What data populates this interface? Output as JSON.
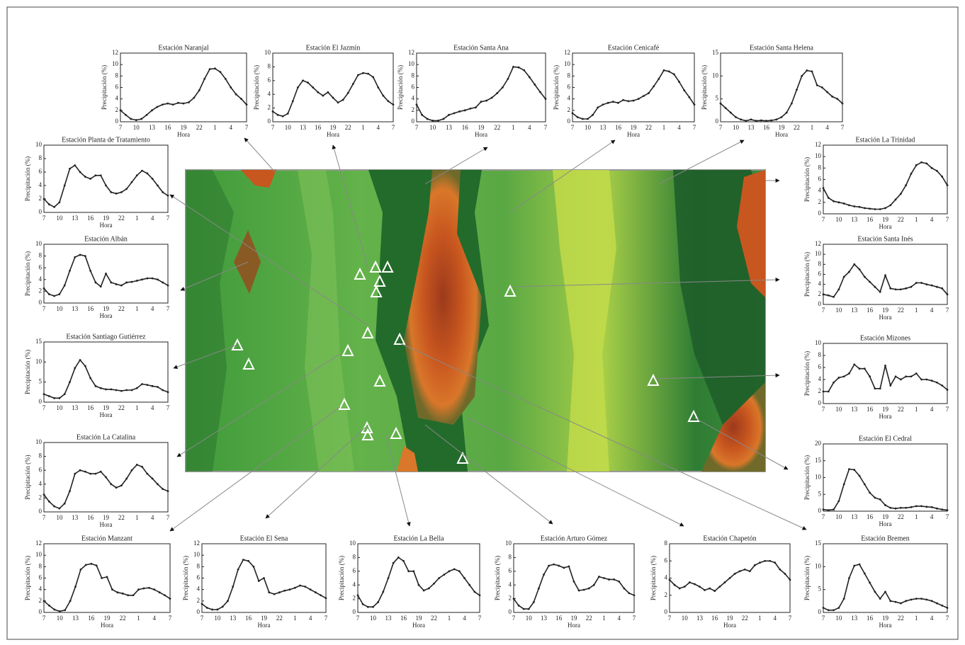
{
  "chart_data": [
    {
      "type": "line",
      "title": "Estación  Naranjal",
      "y_label": "Precipitación (%)",
      "x_label": "Hora",
      "color": "#222222",
      "categories": [
        "7",
        null,
        null,
        "10",
        null,
        null,
        "13",
        null,
        null,
        "16",
        null,
        null,
        "19",
        null,
        null,
        "22",
        null,
        null,
        "1",
        null,
        null,
        "4",
        null,
        null,
        "7"
      ],
      "values": [
        2,
        1.2,
        0.5,
        0.3,
        0.5,
        1.2,
        2,
        2.6,
        3,
        3.2,
        3,
        3.3,
        3.2,
        3.4,
        4.2,
        5.5,
        7.5,
        9.2,
        9.3,
        8.7,
        7.5,
        6,
        4.8,
        4,
        3
      ],
      "ylim": [
        0,
        12
      ],
      "yticks": [
        0,
        2,
        4,
        6,
        8,
        10,
        12
      ]
    },
    {
      "type": "line",
      "title": "Estación  El Jazmín",
      "y_label": "Precipitación (%)",
      "x_label": "Hora",
      "color": "#222222",
      "categories": [
        "7",
        null,
        null,
        "10",
        null,
        null,
        "13",
        null,
        null,
        "16",
        null,
        null,
        "19",
        null,
        null,
        "22",
        null,
        null,
        "1",
        null,
        null,
        "4",
        null,
        null,
        "7"
      ],
      "values": [
        1.5,
        1,
        0.8,
        1.2,
        3,
        5,
        6,
        5.7,
        5,
        4.3,
        3.8,
        4.3,
        3.5,
        2.8,
        3.2,
        4.2,
        5.5,
        6.8,
        7.1,
        7,
        6.5,
        5,
        3.8,
        3,
        2.5
      ],
      "ylim": [
        0,
        10
      ],
      "yticks": [
        0,
        2,
        4,
        6,
        8,
        10
      ]
    },
    {
      "type": "line",
      "title": "Estación  Santa Ana",
      "y_label": "Precipitación (%)",
      "x_label": "Hora",
      "color": "#222222",
      "categories": [
        "7",
        null,
        null,
        "10",
        null,
        null,
        "13",
        null,
        null,
        "16",
        null,
        null,
        "19",
        null,
        null,
        "22",
        null,
        null,
        "1",
        null,
        null,
        "4",
        null,
        null,
        "7"
      ],
      "values": [
        3,
        1.2,
        0.5,
        0.2,
        0.2,
        0.5,
        1.2,
        1.5,
        1.8,
        2,
        2.3,
        2.5,
        3.5,
        3.7,
        4.2,
        5,
        6,
        7.5,
        9.6,
        9.5,
        9,
        7.8,
        6.5,
        5.2,
        4
      ],
      "ylim": [
        0,
        12
      ],
      "yticks": [
        0,
        2,
        4,
        6,
        8,
        10,
        12
      ]
    },
    {
      "type": "line",
      "title": "Estación  Cenicafé",
      "y_label": "Precipitación (%)",
      "x_label": "Hora",
      "color": "#222222",
      "categories": [
        "7",
        null,
        null,
        "10",
        null,
        null,
        "13",
        null,
        null,
        "16",
        null,
        null,
        "19",
        null,
        null,
        "22",
        null,
        null,
        "1",
        null,
        null,
        "4",
        null,
        null,
        "7"
      ],
      "values": [
        1.5,
        0.8,
        0.5,
        0.5,
        1.2,
        2.5,
        3,
        3.3,
        3.5,
        3.3,
        3.8,
        3.6,
        3.7,
        4,
        4.5,
        5,
        6.2,
        7.5,
        9,
        8.8,
        8.3,
        7,
        5.5,
        4.3,
        3
      ],
      "ylim": [
        0,
        12
      ],
      "yticks": [
        0,
        2,
        4,
        6,
        8,
        10,
        12
      ]
    },
    {
      "type": "line",
      "title": "Estación  Santa Helena",
      "y_label": "Precipitación (%)",
      "x_label": "Hora",
      "color": "#222222",
      "categories": [
        "7",
        null,
        null,
        "10",
        null,
        null,
        "13",
        null,
        null,
        "16",
        null,
        null,
        "19",
        null,
        null,
        "22",
        null,
        null,
        "1",
        null,
        null,
        "4",
        null,
        null,
        "7"
      ],
      "values": [
        4,
        3,
        2,
        1,
        0.5,
        0.2,
        0.5,
        0.2,
        0.3,
        0.2,
        0.3,
        0.5,
        1,
        2,
        4,
        7,
        10,
        11.2,
        11,
        8,
        7.5,
        6.5,
        5.5,
        5,
        4
      ],
      "ylim": [
        0,
        15
      ],
      "yticks": [
        0,
        5,
        10,
        15
      ]
    },
    {
      "type": "line",
      "title": "Estación  Planta de Tratamiento",
      "y_label": "Precipitación (%)",
      "x_label": "Hora",
      "color": "#222222",
      "categories": [
        "7",
        null,
        null,
        "10",
        null,
        null,
        "13",
        null,
        null,
        "16",
        null,
        null,
        "19",
        null,
        null,
        "22",
        null,
        null,
        "1",
        null,
        null,
        "4",
        null,
        null,
        "7"
      ],
      "values": [
        2,
        1.2,
        0.8,
        1.5,
        4,
        6.5,
        7,
        6,
        5.3,
        5,
        5.5,
        5.5,
        4,
        3,
        2.8,
        3,
        3.5,
        4.5,
        5.5,
        6.2,
        5.8,
        5,
        4,
        3,
        2.5
      ],
      "ylim": [
        0,
        10
      ],
      "yticks": [
        0,
        2,
        4,
        6,
        8,
        10
      ]
    },
    {
      "type": "line",
      "title": "Estación  Albán",
      "y_label": "Precipitación (%)",
      "x_label": "Hora",
      "color": "#222222",
      "categories": [
        "7",
        null,
        null,
        "10",
        null,
        null,
        "13",
        null,
        null,
        "16",
        null,
        null,
        "19",
        null,
        null,
        "22",
        null,
        null,
        "1",
        null,
        null,
        "4",
        null,
        null,
        "7"
      ],
      "values": [
        2.5,
        1.5,
        1.2,
        1.5,
        3,
        5.5,
        7.8,
        8.2,
        8,
        5.5,
        3.5,
        2.8,
        5,
        3.5,
        3.2,
        3,
        3.5,
        3.6,
        3.8,
        4,
        4.2,
        4.2,
        4,
        3.5,
        3
      ],
      "ylim": [
        0,
        10
      ],
      "yticks": [
        0,
        2,
        4,
        6,
        8,
        10
      ]
    },
    {
      "type": "line",
      "title": "Estación  Santiago Gutiérrez",
      "y_label": "Precipitación (%)",
      "x_label": "Hora",
      "color": "#222222",
      "categories": [
        "7",
        null,
        null,
        "10",
        null,
        null,
        "13",
        null,
        null,
        "16",
        null,
        null,
        "19",
        null,
        null,
        "22",
        null,
        null,
        "1",
        null,
        null,
        "4",
        null,
        null,
        "7"
      ],
      "values": [
        2,
        1.5,
        1,
        1,
        2,
        5,
        8.5,
        10.5,
        9,
        6,
        4,
        3.5,
        3.2,
        3.2,
        3,
        2.8,
        3,
        3,
        3.5,
        4.5,
        4.3,
        4,
        3.8,
        3,
        2.5
      ],
      "ylim": [
        0,
        15
      ],
      "yticks": [
        0,
        5,
        10,
        15
      ]
    },
    {
      "type": "line",
      "title": "Estación  La Catalina",
      "y_label": "Precipitación (%)",
      "x_label": "Hora",
      "color": "#222222",
      "categories": [
        "7",
        null,
        null,
        "10",
        null,
        null,
        "13",
        null,
        null,
        "16",
        null,
        null,
        "19",
        null,
        null,
        "22",
        null,
        null,
        "1",
        null,
        null,
        "4",
        null,
        null,
        "7"
      ],
      "values": [
        2.5,
        1.5,
        0.8,
        0.5,
        1.2,
        3,
        5.5,
        6,
        5.8,
        5.5,
        5.5,
        5.8,
        5,
        4,
        3.5,
        3.8,
        4.8,
        6,
        6.8,
        6.5,
        5.5,
        4.8,
        4,
        3.3,
        3
      ],
      "ylim": [
        0,
        10
      ],
      "yticks": [
        0,
        2,
        4,
        6,
        8,
        10
      ]
    },
    {
      "type": "line",
      "title": "Estación  Manzant",
      "y_label": "Precipitación (%)",
      "x_label": "Hora",
      "color": "#222222",
      "categories": [
        "7",
        null,
        null,
        "10",
        null,
        null,
        "13",
        null,
        null,
        "16",
        null,
        null,
        "19",
        null,
        null,
        "22",
        null,
        null,
        "1",
        null,
        null,
        "4",
        null,
        null,
        "7"
      ],
      "values": [
        2,
        1.2,
        0.5,
        0.2,
        0.4,
        2,
        4.5,
        7.5,
        8.3,
        8.5,
        8.2,
        6,
        6.2,
        4,
        3.5,
        3.3,
        3,
        3,
        4,
        4.2,
        4.3,
        4,
        3.5,
        3,
        2.4
      ],
      "ylim": [
        0,
        12
      ],
      "yticks": [
        0,
        2,
        4,
        6,
        8,
        10,
        12
      ]
    },
    {
      "type": "line",
      "title": "Estación  El Sena",
      "y_label": "Precipitación (%)",
      "x_label": "Hora",
      "color": "#222222",
      "categories": [
        "7",
        null,
        null,
        "10",
        null,
        null,
        "13",
        null,
        null,
        "16",
        null,
        null,
        "19",
        null,
        null,
        "22",
        null,
        null,
        "1",
        null,
        null,
        "4",
        null,
        null,
        "7"
      ],
      "values": [
        1.5,
        0.8,
        0.5,
        0.5,
        1,
        2,
        4.5,
        7.5,
        9.2,
        9,
        8,
        5.5,
        6,
        3.5,
        3.2,
        3.5,
        3.8,
        4,
        4.3,
        4.7,
        4.5,
        4,
        3.5,
        3,
        2.5
      ],
      "ylim": [
        0,
        12
      ],
      "yticks": [
        0,
        2,
        4,
        6,
        8,
        10,
        12
      ]
    },
    {
      "type": "line",
      "title": "Estación  La Bella",
      "y_label": "Precipitación (%)",
      "x_label": "Hora",
      "color": "#222222",
      "categories": [
        "7",
        null,
        null,
        "10",
        null,
        null,
        "13",
        null,
        null,
        "16",
        null,
        null,
        "19",
        null,
        null,
        "22",
        null,
        null,
        "1",
        null,
        null,
        "4",
        null,
        null,
        "7"
      ],
      "values": [
        2.5,
        1.2,
        0.8,
        0.8,
        1.5,
        3,
        5,
        7.2,
        8,
        7.5,
        6,
        6,
        4,
        3.2,
        3.5,
        4.2,
        5,
        5.5,
        6,
        6.3,
        6,
        5,
        4,
        3,
        2.5
      ],
      "ylim": [
        0,
        10
      ],
      "yticks": [
        0,
        2,
        4,
        6,
        8,
        10
      ]
    },
    {
      "type": "line",
      "title": "Estación  Arturo Gómez",
      "y_label": "Precipitación (%)",
      "x_label": "Hora",
      "color": "#222222",
      "categories": [
        "7",
        null,
        null,
        "10",
        null,
        null,
        "13",
        null,
        null,
        "16",
        null,
        null,
        "19",
        null,
        null,
        "22",
        null,
        null,
        "1",
        null,
        null,
        "4",
        null,
        null,
        "7"
      ],
      "values": [
        2,
        1,
        0.5,
        0.5,
        1.5,
        3.5,
        5.5,
        6.8,
        7,
        6.8,
        6.5,
        6.7,
        4.5,
        3.2,
        3.3,
        3.5,
        4,
        5.2,
        5,
        4.8,
        4.8,
        4.5,
        3.5,
        2.8,
        2.5
      ],
      "ylim": [
        0,
        10
      ],
      "yticks": [
        0,
        2,
        4,
        6,
        8,
        10
      ]
    },
    {
      "type": "line",
      "title": "Estación  Chapetón",
      "y_label": "Precipitación (%)",
      "x_label": "Hora",
      "color": "#222222",
      "categories": [
        "7",
        null,
        null,
        "10",
        null,
        null,
        "13",
        null,
        null,
        "16",
        null,
        null,
        "19",
        null,
        null,
        "22",
        null,
        null,
        "1",
        null,
        null,
        "4",
        null,
        null,
        "7"
      ],
      "values": [
        3.8,
        3.2,
        2.8,
        3,
        3.5,
        3.3,
        3,
        2.6,
        2.8,
        2.5,
        3,
        3.5,
        4,
        4.5,
        4.8,
        5,
        4.8,
        5.5,
        5.8,
        6,
        6,
        5.8,
        5,
        4.5,
        3.8
      ],
      "ylim": [
        0,
        8
      ],
      "yticks": [
        0,
        2,
        4,
        6,
        8
      ]
    },
    {
      "type": "line",
      "title": "Estación  La Trinidad",
      "y_label": "Precipitación (%)",
      "x_label": "Hora",
      "color": "#222222",
      "categories": [
        "7",
        null,
        null,
        "10",
        null,
        null,
        "13",
        null,
        null,
        "16",
        null,
        null,
        "19",
        null,
        null,
        "22",
        null,
        null,
        "1",
        null,
        null,
        "4",
        null,
        null,
        "7"
      ],
      "values": [
        4.5,
        2.8,
        2.2,
        2,
        1.8,
        1.5,
        1.3,
        1.2,
        1,
        0.9,
        0.8,
        0.8,
        1,
        1.5,
        2.5,
        3.5,
        5,
        7,
        8.5,
        9,
        8.8,
        8,
        7.5,
        6.5,
        5
      ],
      "ylim": [
        0,
        12
      ],
      "yticks": [
        0,
        2,
        4,
        6,
        8,
        10,
        12
      ]
    },
    {
      "type": "line",
      "title": "Estación  Santa Inés",
      "y_label": "Precipitación (%)",
      "x_label": "Hora",
      "color": "#222222",
      "categories": [
        "7",
        null,
        null,
        "10",
        null,
        null,
        "13",
        null,
        null,
        "16",
        null,
        null,
        "19",
        null,
        null,
        "22",
        null,
        null,
        "1",
        null,
        null,
        "4",
        null,
        null,
        "7"
      ],
      "values": [
        2,
        1.8,
        1.5,
        3,
        5.5,
        6.5,
        8,
        7,
        5.5,
        4.5,
        3.5,
        2.5,
        5.8,
        3.2,
        3,
        3,
        3.2,
        3.5,
        4.3,
        4.3,
        4,
        3.8,
        3.5,
        3.2,
        2
      ],
      "ylim": [
        0,
        12
      ],
      "yticks": [
        0,
        2,
        4,
        6,
        8,
        10,
        12
      ]
    },
    {
      "type": "line",
      "title": "Estación  Mizones",
      "y_label": "Precipitación (%)",
      "x_label": "Hora",
      "color": "#222222",
      "categories": [
        "7",
        null,
        null,
        "10",
        null,
        null,
        "13",
        null,
        null,
        "16",
        null,
        null,
        "19",
        null,
        null,
        "22",
        null,
        null,
        "1",
        null,
        null,
        "4",
        null,
        null,
        "7"
      ],
      "values": [
        2,
        2,
        3.5,
        4.3,
        4.5,
        5,
        6.5,
        5.8,
        5.8,
        4.5,
        2.5,
        2.5,
        6.3,
        3,
        4.5,
        4,
        4.5,
        4.5,
        5,
        4,
        4,
        3.8,
        3.5,
        3,
        2.3
      ],
      "ylim": [
        0,
        10
      ],
      "yticks": [
        0,
        2,
        4,
        6,
        8,
        10
      ]
    },
    {
      "type": "line",
      "title": "Estación  El Cedral",
      "y_label": "Precipitación (%)",
      "x_label": "Hora",
      "color": "#222222",
      "categories": [
        "7",
        null,
        null,
        "10",
        null,
        null,
        "13",
        null,
        null,
        "16",
        null,
        null,
        "19",
        null,
        null,
        "22",
        null,
        null,
        "1",
        null,
        null,
        "4",
        null,
        null,
        "7"
      ],
      "values": [
        0.5,
        0.3,
        0.5,
        3,
        8,
        12.5,
        12.3,
        10.5,
        8,
        5.5,
        4,
        3.5,
        1.8,
        1,
        0.8,
        1,
        1,
        1.2,
        1.5,
        1.5,
        1.3,
        1.2,
        0.8,
        0.5,
        0.3
      ],
      "ylim": [
        0,
        20
      ],
      "yticks": [
        0,
        5,
        10,
        15,
        20
      ]
    },
    {
      "type": "line",
      "title": "Estación  Bremen",
      "y_label": "Precipitación (%)",
      "x_label": "Hora",
      "color": "#222222",
      "categories": [
        "7",
        null,
        null,
        "10",
        null,
        null,
        "13",
        null,
        null,
        "16",
        null,
        null,
        "19",
        null,
        null,
        "22",
        null,
        null,
        "1",
        null,
        null,
        "4",
        null,
        null,
        "7"
      ],
      "values": [
        1,
        0.5,
        0.5,
        1,
        3,
        7.5,
        10.2,
        10.5,
        8.5,
        6.5,
        4.5,
        3,
        4.5,
        2.5,
        2.3,
        2,
        2.5,
        2.8,
        3,
        3,
        2.8,
        2.5,
        2,
        1.5,
        1
      ],
      "ylim": [
        0,
        15
      ],
      "yticks": [
        0,
        5,
        10,
        15
      ]
    }
  ]
}
